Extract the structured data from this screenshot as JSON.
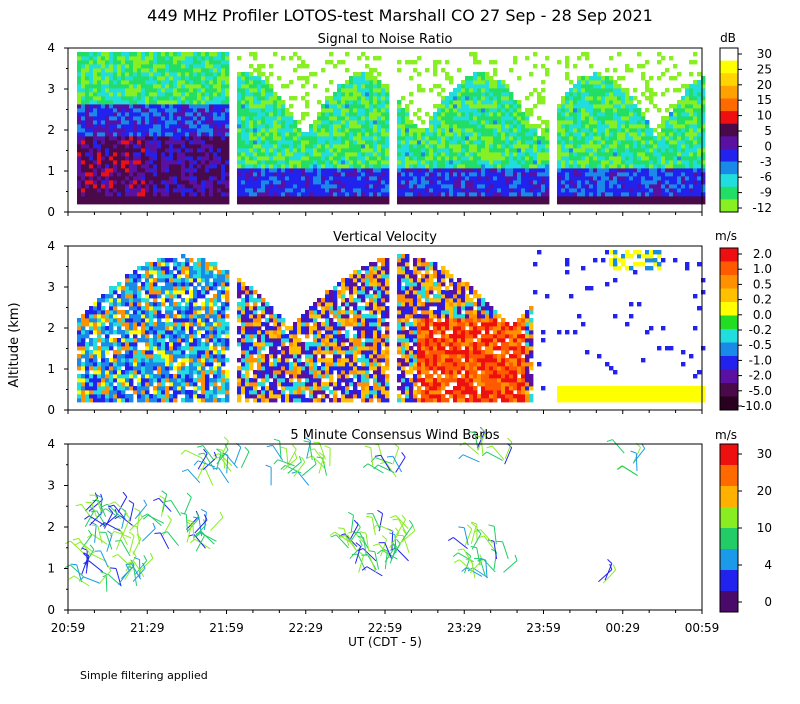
{
  "title": "449 MHz Profiler LOTOS-test Marshall CO 27 Sep - 28 Sep 2021",
  "ylabel": "Altitude (km)",
  "xlabel": "UT  (CDT - 5)",
  "footer": "Simple filtering applied",
  "x_ticks": [
    "20:59",
    "21:29",
    "21:59",
    "22:29",
    "22:59",
    "23:29",
    "23:59",
    "00:29",
    "00:59"
  ],
  "y_ticks": [
    "0",
    "1",
    "2",
    "3",
    "4"
  ],
  "chart_data": [
    {
      "type": "heatmap",
      "title": "Signal to Noise Ratio",
      "units": "dB",
      "ylim": [
        0,
        4
      ],
      "x_range": [
        "20:59",
        "00:59"
      ],
      "colorbar_labels": [
        "30",
        "25",
        "20",
        "15",
        "10",
        "5",
        "0",
        "-3",
        "-6",
        "-9",
        "-12"
      ],
      "colorbar_colors": [
        "#ffffff",
        "#ffff00",
        "#ffd400",
        "#ffa200",
        "#ff6a00",
        "#ee1010",
        "#4a0a4a",
        "#5a10a0",
        "#2222ee",
        "#1a8ae8",
        "#22dddd",
        "#22dd66",
        "#88f022"
      ]
    },
    {
      "type": "heatmap",
      "title": "Vertical Velocity",
      "units": "m/s",
      "ylim": [
        0,
        4
      ],
      "x_range": [
        "20:59",
        "00:59"
      ],
      "colorbar_labels": [
        "2.0",
        "1.0",
        "0.5",
        "0.2",
        "0.0",
        "-0.2",
        "-0.5",
        "-1.0",
        "-2.0",
        "-5.0",
        "-10.0"
      ],
      "colorbar_colors": [
        "#ee1010",
        "#ff5a00",
        "#ff9000",
        "#ffc000",
        "#ffff00",
        "#22dd22",
        "#22dddd",
        "#1a8ae8",
        "#2222ee",
        "#5a10a0",
        "#4a0a4a",
        "#2a0020"
      ]
    },
    {
      "type": "scatter",
      "title": "5 Minute Consensus Wind Barbs",
      "units": "m/s",
      "ylim": [
        0,
        4
      ],
      "x_range": [
        "20:59",
        "00:59"
      ],
      "colorbar_labels": [
        "30",
        "20",
        "10",
        "4",
        "0"
      ],
      "colorbar_colors": [
        "#ee1010",
        "#ff6a00",
        "#ffb000",
        "#88ee22",
        "#22cc66",
        "#1a9ae8",
        "#2222ee",
        "#4a0a6a"
      ]
    }
  ]
}
